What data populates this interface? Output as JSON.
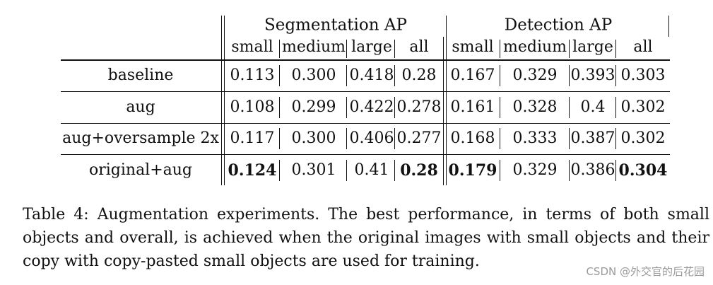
{
  "table": {
    "groups": [
      {
        "label": "Segmentation AP",
        "columns": [
          "small",
          "medium",
          "large",
          "all"
        ]
      },
      {
        "label": "Detection AP",
        "columns": [
          "small",
          "medium",
          "large",
          "all"
        ]
      }
    ],
    "rows": [
      {
        "name": "baseline",
        "values": [
          "0.113",
          "0.300",
          "0.418",
          "0.28",
          "0.167",
          "0.329",
          "0.393",
          "0.303"
        ],
        "bold": [
          false,
          false,
          false,
          false,
          false,
          false,
          false,
          false
        ]
      },
      {
        "name": "aug",
        "values": [
          "0.108",
          "0.299",
          "0.422",
          "0.278",
          "0.161",
          "0.328",
          "0.4",
          "0.302"
        ],
        "bold": [
          false,
          false,
          false,
          false,
          false,
          false,
          false,
          false
        ]
      },
      {
        "name": "aug+oversample 2x",
        "values": [
          "0.117",
          "0.300",
          "0.406",
          "0.277",
          "0.168",
          "0.333",
          "0.387",
          "0.302"
        ],
        "bold": [
          false,
          false,
          false,
          false,
          false,
          false,
          false,
          false
        ]
      },
      {
        "name": "original+aug",
        "values": [
          "0.124",
          "0.301",
          "0.41",
          "0.28",
          "0.179",
          "0.329",
          "0.386",
          "0.304"
        ],
        "bold": [
          true,
          false,
          false,
          true,
          true,
          false,
          false,
          true
        ]
      }
    ]
  },
  "caption": "Table 4: Augmentation experiments. The best performance, in terms of both small objects and overall, is achieved when the original images with small objects and their copy with copy-pasted small objects are used for training.",
  "watermark": "CSDN @外交官的后花园"
}
